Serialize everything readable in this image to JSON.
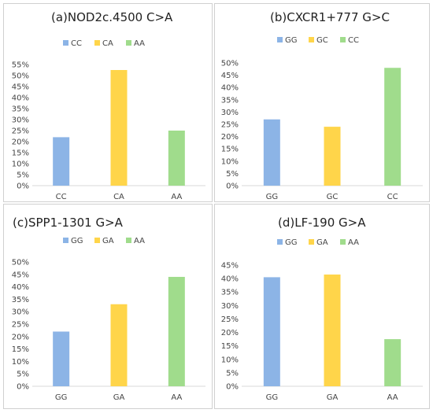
{
  "chart_data": [
    {
      "type": "bar",
      "title": "(a)NOD2c.4500   C>A",
      "categories": [
        "CC",
        "CA",
        "AA"
      ],
      "values": [
        22,
        52.5,
        25
      ],
      "unit": "%",
      "ylim": [
        0,
        55
      ],
      "ystep": 5,
      "colors": [
        "#8cb4e6",
        "#ffd54a",
        "#a0dc8c"
      ],
      "legend": [
        "CC",
        "CA",
        "AA"
      ],
      "legend_position": "top",
      "grid": false
    },
    {
      "type": "bar",
      "title": "(b)CXCR1+777   G>C",
      "categories": [
        "GG",
        "GC",
        "CC"
      ],
      "values": [
        27,
        24,
        48
      ],
      "unit": "%",
      "ylim": [
        0,
        50
      ],
      "ystep": 5,
      "colors": [
        "#8cb4e6",
        "#ffd54a",
        "#a0dc8c"
      ],
      "legend": [
        "GG",
        "GC",
        "CC"
      ],
      "legend_position": "top",
      "grid": false
    },
    {
      "type": "bar",
      "title": "(c)SPP1-1301   G>A",
      "categories": [
        "GG",
        "GA",
        "AA"
      ],
      "values": [
        22,
        33,
        44
      ],
      "unit": "%",
      "ylim": [
        0,
        50
      ],
      "ystep": 5,
      "colors": [
        "#8cb4e6",
        "#ffd54a",
        "#a0dc8c"
      ],
      "legend": [
        "GG",
        "GA",
        "AA"
      ],
      "legend_position": "top",
      "grid": false
    },
    {
      "type": "bar",
      "title": "(d)LF-190   G>A",
      "categories": [
        "GG",
        "GA",
        "AA"
      ],
      "values": [
        40.5,
        41.5,
        17.5
      ],
      "unit": "%",
      "ylim": [
        0,
        45
      ],
      "ystep": 5,
      "colors": [
        "#8cb4e6",
        "#ffd54a",
        "#a0dc8c"
      ],
      "legend": [
        "GG",
        "GA",
        "AA"
      ],
      "legend_position": "top",
      "grid": false
    }
  ]
}
